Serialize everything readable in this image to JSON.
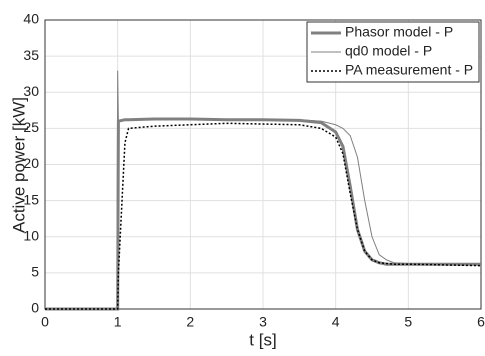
{
  "chart_data": {
    "type": "line",
    "x_label": "t [s]",
    "y_label": "Active power [kW]",
    "x": [
      0,
      0.5,
      0.99,
      1.0,
      1.01,
      1.1,
      1.15,
      1.5,
      2,
      2.5,
      3,
      3.5,
      3.8,
      4.0,
      4.1,
      4.2,
      4.3,
      4.4,
      4.5,
      4.6,
      4.7,
      4.8,
      5,
      5.5,
      6
    ],
    "series": [
      {
        "name": "Phasor model - P",
        "color": "#808080",
        "width": 3,
        "dash": "none",
        "values": [
          0,
          0,
          0,
          0,
          26,
          26.2,
          26.2,
          26.3,
          26.3,
          26.2,
          26.2,
          26.1,
          25.8,
          24.5,
          22.5,
          17,
          11,
          8,
          6.8,
          6.4,
          6.2,
          6.2,
          6.2,
          6.2,
          6.2
        ]
      },
      {
        "name": "qd0 model - P",
        "color": "#808080",
        "width": 1,
        "dash": "none",
        "values": [
          0,
          0,
          0,
          33,
          26,
          26.2,
          26.2,
          26.3,
          26.3,
          26.3,
          26.2,
          26.2,
          26,
          25.5,
          25,
          24,
          21,
          15,
          10,
          7.5,
          6.8,
          6.4,
          6.3,
          6.2,
          6.2
        ]
      },
      {
        "name": "PA measurement - P",
        "color": "#000000",
        "width": 1.5,
        "dash": "2,2",
        "values": [
          0,
          0,
          0,
          0,
          5,
          23,
          25,
          25.3,
          25.5,
          25.7,
          25.6,
          25.5,
          25,
          23.8,
          21.5,
          16,
          11,
          8,
          6.8,
          6.4,
          6.3,
          6.2,
          6.2,
          6.1,
          6
        ]
      }
    ],
    "xlim": [
      0,
      6
    ],
    "xticks": [
      0,
      1,
      2,
      3,
      4,
      5,
      6
    ],
    "ylim": [
      0,
      40
    ],
    "yticks": [
      0,
      5,
      10,
      15,
      20,
      25,
      30,
      35,
      40
    ],
    "grid": true,
    "legend": "top-right"
  }
}
